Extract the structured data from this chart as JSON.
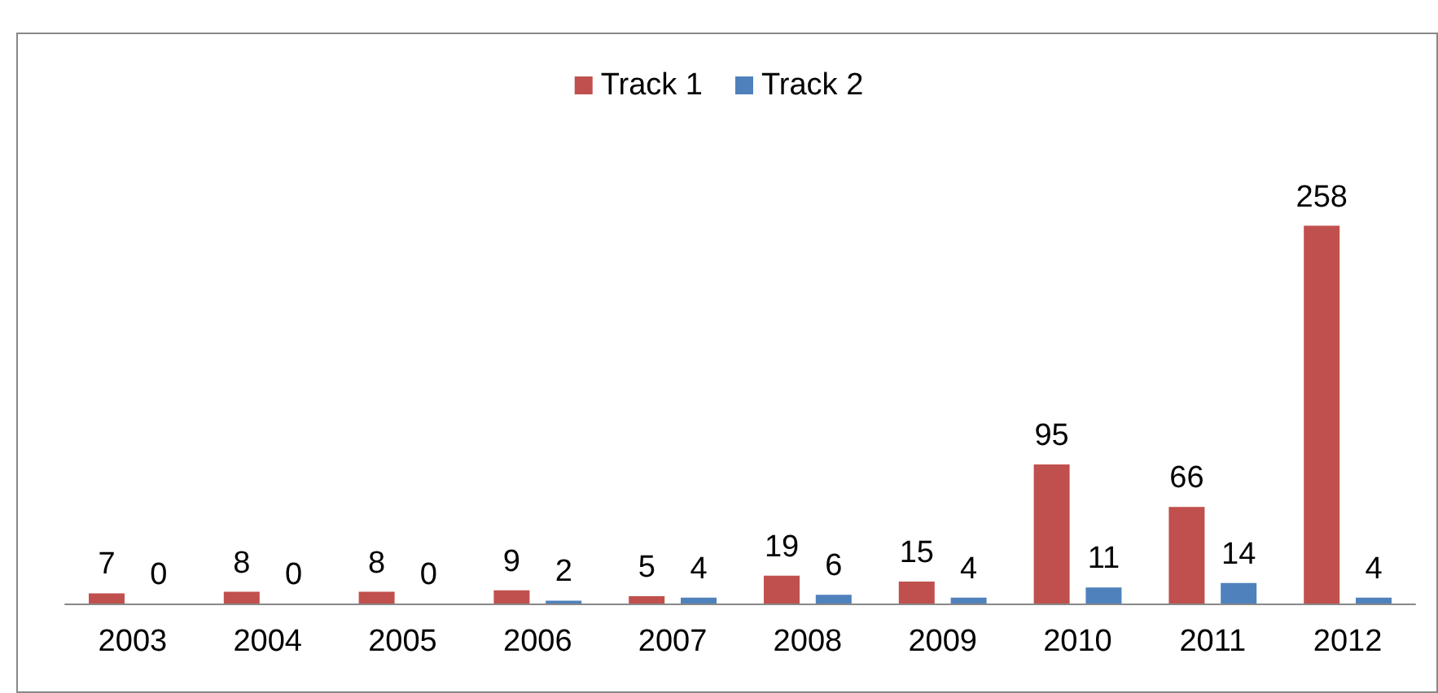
{
  "chart_data": {
    "type": "bar",
    "categories": [
      "2003",
      "2004",
      "2005",
      "2006",
      "2007",
      "2008",
      "2009",
      "2010",
      "2011",
      "2012"
    ],
    "series": [
      {
        "name": "Track 1",
        "color": "#c0504d",
        "values": [
          7,
          8,
          8,
          9,
          5,
          19,
          15,
          95,
          66,
          258
        ]
      },
      {
        "name": "Track 2",
        "color": "#4f81bd",
        "values": [
          0,
          0,
          0,
          2,
          4,
          6,
          4,
          11,
          14,
          4
        ]
      }
    ],
    "data_labels": true,
    "legend": "top"
  }
}
